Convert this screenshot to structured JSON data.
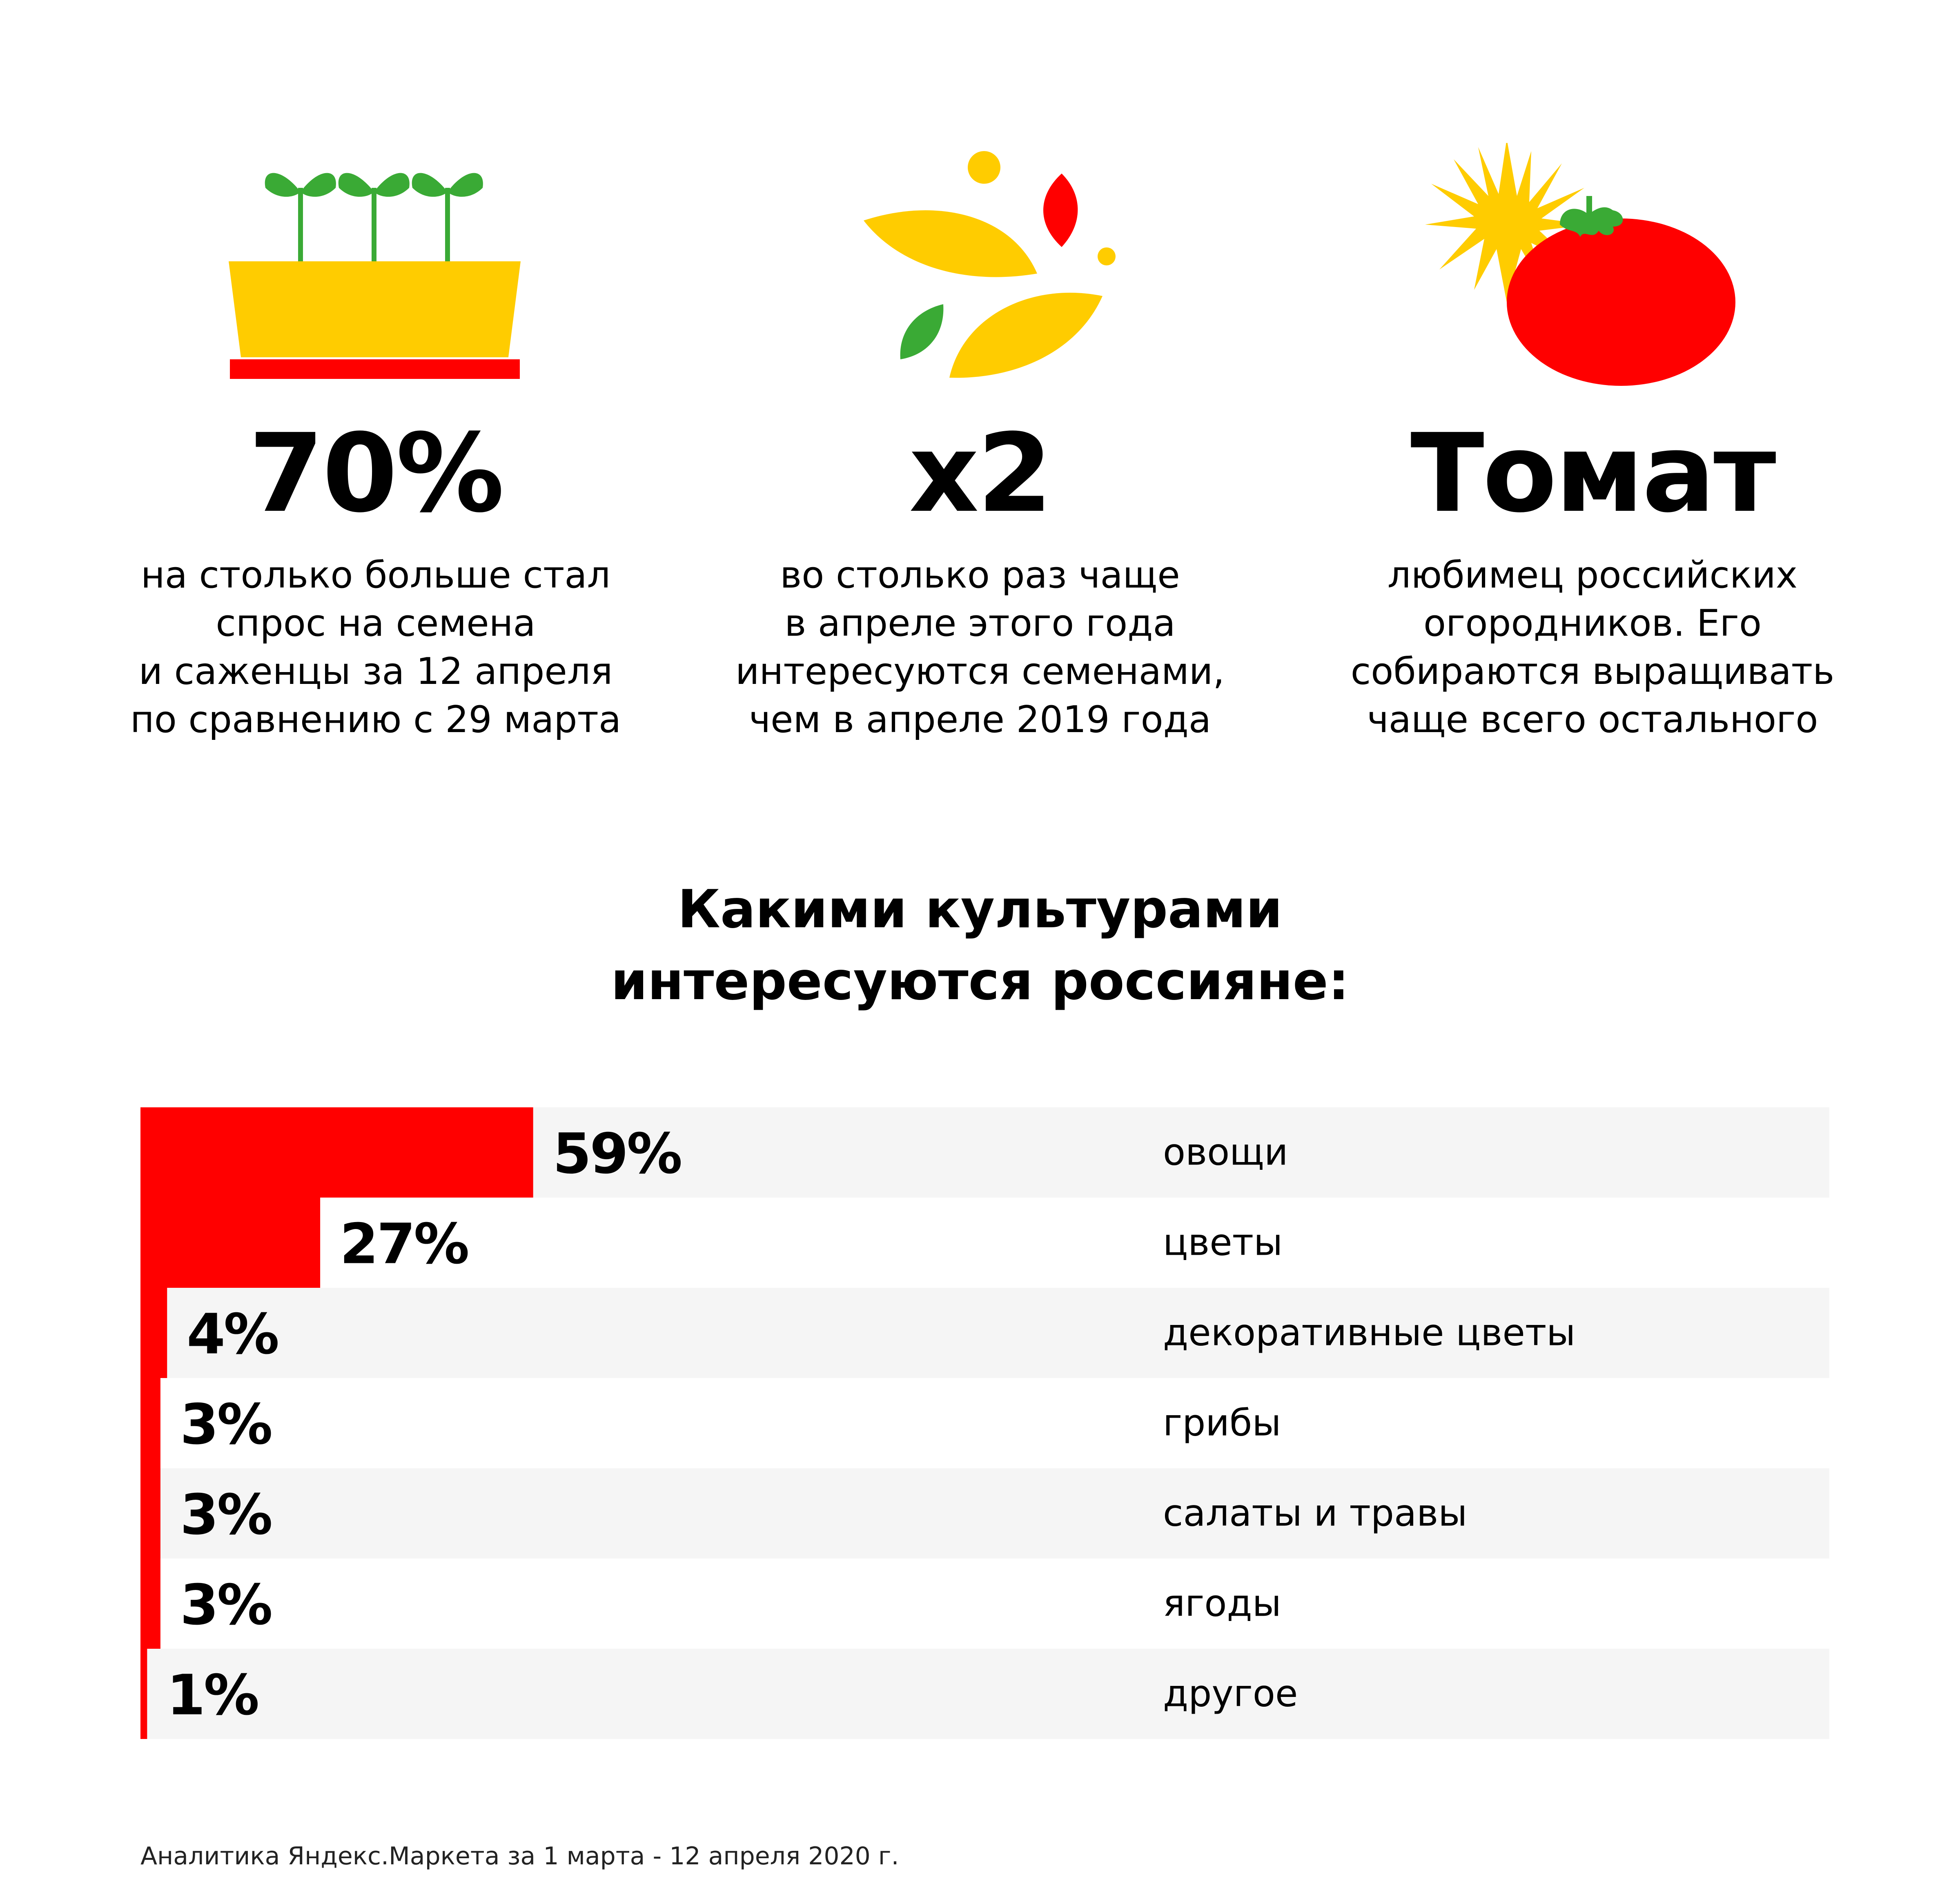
{
  "colors": {
    "red": "#ff0000",
    "yellow": "#ffcc00",
    "green": "#3aaa35",
    "row_bg": "#f5f5f5",
    "text": "#000000"
  },
  "stats": [
    {
      "icon": "seedlings-pot-icon",
      "value": "70%",
      "description": "на столько больше стал\nспрос на семена\nи саженцы за 12 апреля\nпо сравнению с 29 марта"
    },
    {
      "icon": "seeds-icon",
      "value": "x2",
      "description": "во столько раз чаще\nв апреле этого года\nинтересуются семенами,\nчем в апреле 2019 года"
    },
    {
      "icon": "tomato-sun-icon",
      "value": "Томат",
      "description": "любимец российских\nогородников. Его\nсобираются выращивать\nчаще всего остального"
    }
  ],
  "chart_title": "Какими культурами\nинтересуются россияне:",
  "chart_data": {
    "type": "bar",
    "orientation": "horizontal",
    "title": "Какими культурами\nинтересуются россияне:",
    "categories": [
      "овощи",
      "цветы",
      "декоративные цветы",
      "грибы",
      "салаты и травы",
      "ягоды",
      "другое"
    ],
    "values": [
      59,
      27,
      4,
      3,
      3,
      3,
      1
    ],
    "value_labels": [
      "59%",
      "27%",
      "4%",
      "3%",
      "3%",
      "3%",
      "1%"
    ],
    "unit": "%",
    "bar_color": "#ff0000",
    "grid": false,
    "legend": "none"
  },
  "source": "Аналитика Яндекс.Маркета за 1 марта - 12 апреля 2020 г."
}
